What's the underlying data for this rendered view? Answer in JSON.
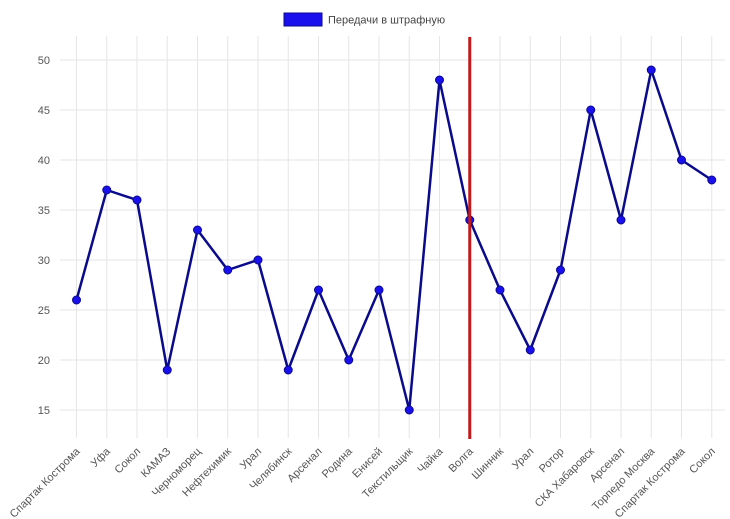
{
  "colors": {
    "line": "#0a0a8c",
    "point": "#1a10ee",
    "marker": "#c21a1a",
    "legend_fill": "#1a10ee",
    "grid": "#e6e6e6"
  },
  "legend": {
    "label": "Передачи в штрафную"
  },
  "chart_data": {
    "type": "line",
    "title": "",
    "xlabel": "",
    "ylabel": "",
    "categories": [
      "Спартак Кострома",
      "Уфа",
      "Сокол",
      "КАМАЗ",
      "Черноморец",
      "Нефтехимик",
      "Урал",
      "Челябинск",
      "Арсенал",
      "Родина",
      "Енисей",
      "Текстильщик",
      "Чайка",
      "Волга",
      "Шинник",
      "Урал",
      "Ротор",
      "СКА Хабаровск",
      "Арсенал",
      "Торпедо Москва",
      "Спартак Кострома",
      "Сокол"
    ],
    "series": [
      {
        "name": "Передачи в штрафную",
        "values": [
          26,
          37,
          36,
          19,
          33,
          29,
          30,
          19,
          27,
          20,
          27,
          15,
          48,
          34,
          27,
          21,
          29,
          45,
          34,
          49,
          40,
          38
        ]
      }
    ],
    "ylim": [
      12.2,
      52.4
    ],
    "yticks": [
      15,
      20,
      25,
      30,
      35,
      40,
      45,
      50
    ],
    "vertical_marker": {
      "category_index": 13,
      "category": "Волга"
    },
    "grid": true,
    "legend_position": "top-center"
  }
}
